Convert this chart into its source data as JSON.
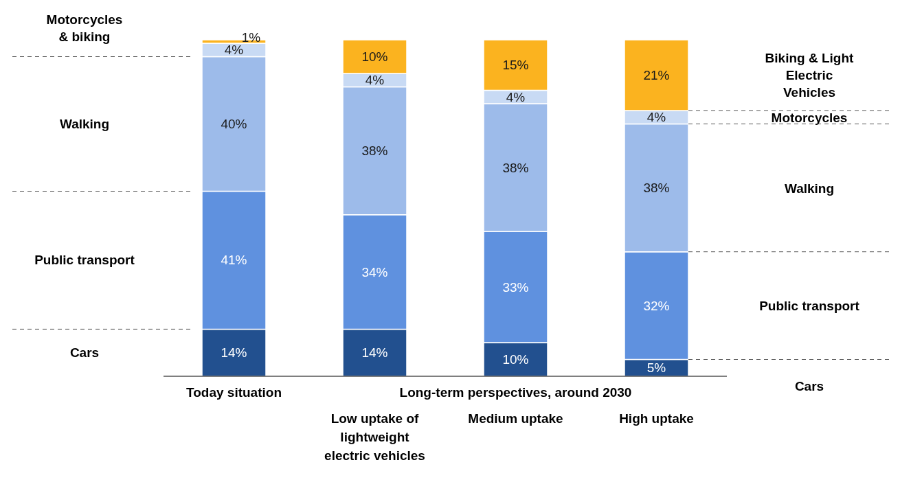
{
  "chart_data": {
    "type": "bar",
    "stacked": true,
    "data_labels": false,
    "categories": [
      "Today situation",
      "Low uptake of lightweight electric vehicles",
      "Medium uptake",
      "High uptake"
    ],
    "series": [
      {
        "name": "Cars",
        "color": "#22508f",
        "values": [
          14,
          14,
          10,
          5
        ],
        "value_labels": [
          "14%",
          "14%",
          "10%",
          "5%"
        ]
      },
      {
        "name": "Public transport",
        "color": "#5f91df",
        "values": [
          41,
          34,
          33,
          32
        ],
        "value_labels": [
          "41%",
          "34%",
          "33%",
          "32%"
        ]
      },
      {
        "name": "Walking",
        "color": "#9dbbea",
        "values": [
          40,
          38,
          38,
          38
        ],
        "value_labels": [
          "40%",
          "38%",
          "38%",
          "38%"
        ]
      },
      {
        "name": "Motorcycles",
        "color": "#c8daf4",
        "values": [
          4,
          4,
          4,
          4
        ],
        "value_labels": [
          "4%",
          "4%",
          "4%",
          "4%"
        ]
      },
      {
        "name": "Biking & Light Electric Vehicles",
        "color": "#fbb31f",
        "values": [
          1,
          10,
          15,
          21
        ],
        "value_labels": [
          "1%",
          "10%",
          "15%",
          "21%"
        ]
      }
    ],
    "annotations": [
      "Motorcycles & biking",
      "Long-term perspectives, around 2030"
    ],
    "legend": false
  }
}
